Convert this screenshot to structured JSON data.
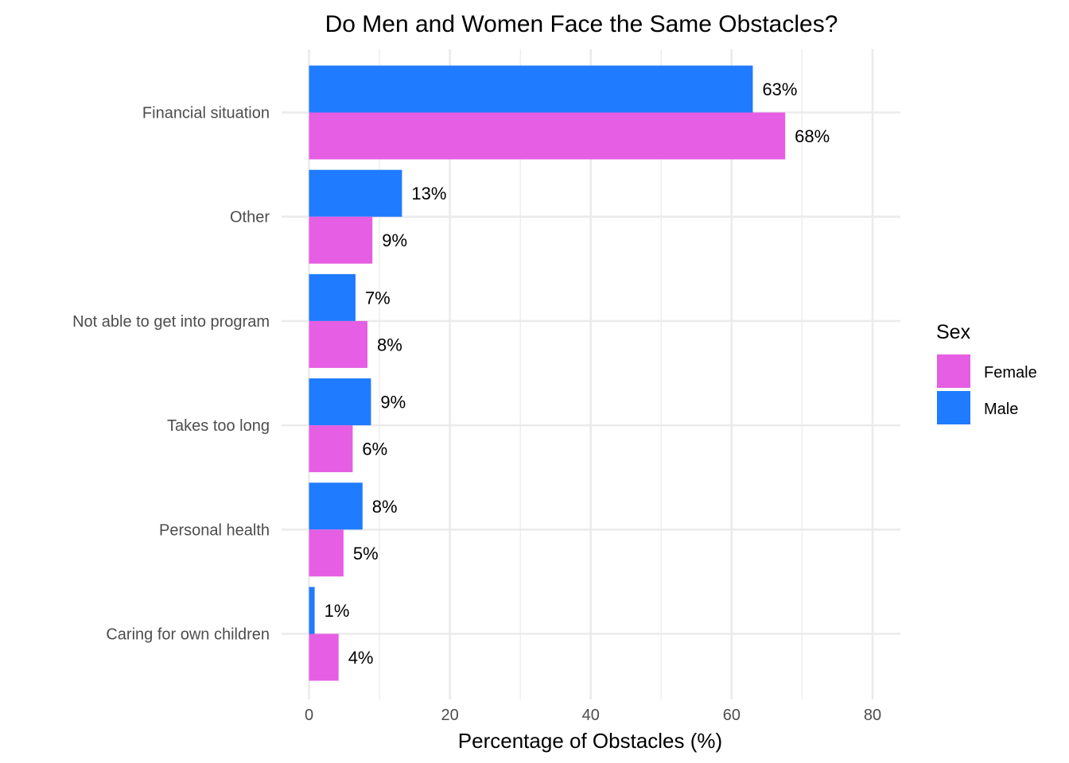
{
  "chart_data": {
    "type": "bar",
    "orientation": "horizontal",
    "title": "Do Men and Women Face the Same Obstacles?",
    "xlabel": "Percentage of Obstacles (%)",
    "ylabel": "",
    "xlim": [
      0,
      84
    ],
    "xticks": [
      0,
      20,
      40,
      60,
      80
    ],
    "categories": [
      "Financial situation",
      "Other",
      "Not able to get into program",
      "Takes too long",
      "Personal health",
      "Caring for own children"
    ],
    "series": [
      {
        "name": "Male",
        "color": "#1f7bff",
        "values": [
          63,
          13.2,
          6.6,
          8.8,
          7.6,
          0.8
        ],
        "labels": [
          "63%",
          "13%",
          "7%",
          "9%",
          "8%",
          "1%"
        ]
      },
      {
        "name": "Female",
        "color": "#e55ee3",
        "values": [
          67.6,
          9,
          8.3,
          6.2,
          4.9,
          4.2
        ],
        "labels": [
          "68%",
          "9%",
          "8%",
          "6%",
          "5%",
          "4%"
        ]
      }
    ],
    "legend": {
      "title": "Sex",
      "position": "right",
      "entries": [
        {
          "name": "Female",
          "color": "#e55ee3"
        },
        {
          "name": "Male",
          "color": "#1f7bff"
        }
      ]
    },
    "grid": true
  }
}
